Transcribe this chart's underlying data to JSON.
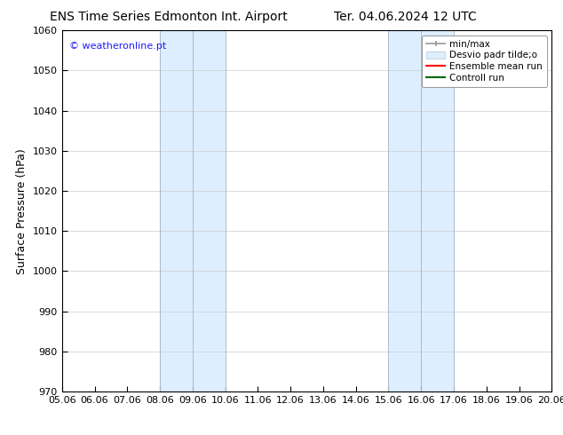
{
  "title_left": "ENS Time Series Edmonton Int. Airport",
  "title_right": "Ter. 04.06.2024 12 UTC",
  "ylabel": "Surface Pressure (hPa)",
  "ylim": [
    970,
    1060
  ],
  "yticks": [
    970,
    980,
    990,
    1000,
    1010,
    1020,
    1030,
    1040,
    1050,
    1060
  ],
  "xtick_labels": [
    "05.06",
    "06.06",
    "07.06",
    "08.06",
    "09.06",
    "10.06",
    "11.06",
    "12.06",
    "13.06",
    "14.06",
    "15.06",
    "16.06",
    "17.06",
    "18.06",
    "19.06",
    "20.06"
  ],
  "shaded_regions": [
    {
      "xstart": 3,
      "xend": 5,
      "color": "#ddeeff"
    },
    {
      "xstart": 10,
      "xend": 12,
      "color": "#ddeeff"
    }
  ],
  "shade_edge_lines": [
    3,
    5,
    10,
    12
  ],
  "shade_inner_lines": [
    4,
    11
  ],
  "watermark": "© weatheronline.pt",
  "watermark_color": "#1a1aff",
  "bg_color": "#ffffff",
  "legend_gray_line": "#999999",
  "legend_band_color": "#ddeeff",
  "legend_band_edge": "#bbccdd",
  "title_fontsize": 10,
  "ylabel_fontsize": 9,
  "tick_fontsize": 8,
  "legend_fontsize": 7.5,
  "watermark_fontsize": 8
}
